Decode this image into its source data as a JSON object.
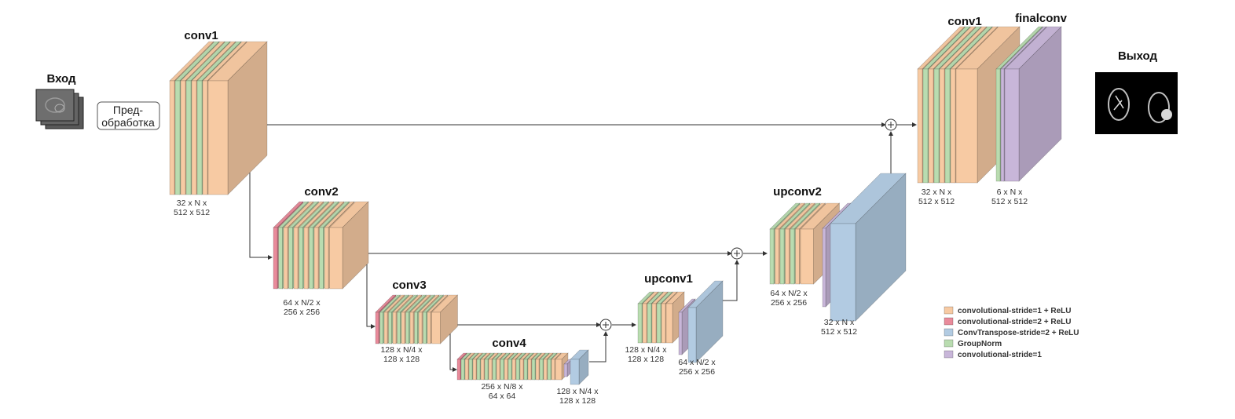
{
  "colors": {
    "conv_s1_relu": "#f7caa3",
    "conv_s2_relu": "#e98b9b",
    "convtranspose": "#b2cbe2",
    "groupnorm": "#b9dcb0",
    "conv_s1": "#c8b6d9"
  },
  "input": {
    "label": "Вход"
  },
  "preprocess": {
    "line1": "Пред-",
    "line2": "обработка"
  },
  "output": {
    "label": "Выход"
  },
  "blocks": [
    {
      "name": "conv1",
      "title": "conv1",
      "dims": [
        "32 x N x",
        "512 x 512"
      ]
    },
    {
      "name": "conv2",
      "title": "conv2",
      "dims": [
        "64 x N/2 x",
        "256 x 256"
      ]
    },
    {
      "name": "conv3",
      "title": "conv3",
      "dims": [
        "128 x N/4 x",
        "128 x 128"
      ]
    },
    {
      "name": "conv4",
      "title": "conv4",
      "dims": [
        "256 x N/8 x",
        "64 x 64"
      ]
    },
    {
      "name": "up4",
      "title": "",
      "dims": [
        "128 x N/4 x",
        "128 x 128"
      ]
    },
    {
      "name": "upconv1",
      "title": "upconv1",
      "dims": [
        "128 x N/4 x",
        "128 x 128"
      ]
    },
    {
      "name": "up1",
      "title": "",
      "dims": [
        "64 x N/2 x",
        "256 x 256"
      ]
    },
    {
      "name": "upconv2",
      "title": "upconv2",
      "dims": [
        "64 x N/2 x",
        "256 x 256"
      ]
    },
    {
      "name": "up2",
      "title": "",
      "dims": [
        "32 x N x",
        "512 x 512"
      ]
    },
    {
      "name": "conv1-out",
      "title": "conv1",
      "dims": [
        "32 x N x",
        "512 x 512"
      ]
    },
    {
      "name": "finalconv",
      "title": "finalconv",
      "dims": [
        "6 x N x",
        "512 x 512"
      ]
    }
  ],
  "legend": [
    {
      "key": "conv_s1_relu",
      "label": "convolutional-stride=1 + ReLU"
    },
    {
      "key": "conv_s2_relu",
      "label": "convolutional-stride=2 + ReLU"
    },
    {
      "key": "convtranspose",
      "label": "ConvTranspose-stride=2 + ReLU"
    },
    {
      "key": "groupnorm",
      "label": "GroupNorm"
    },
    {
      "key": "conv_s1",
      "label": "convolutional-stride=1"
    }
  ]
}
